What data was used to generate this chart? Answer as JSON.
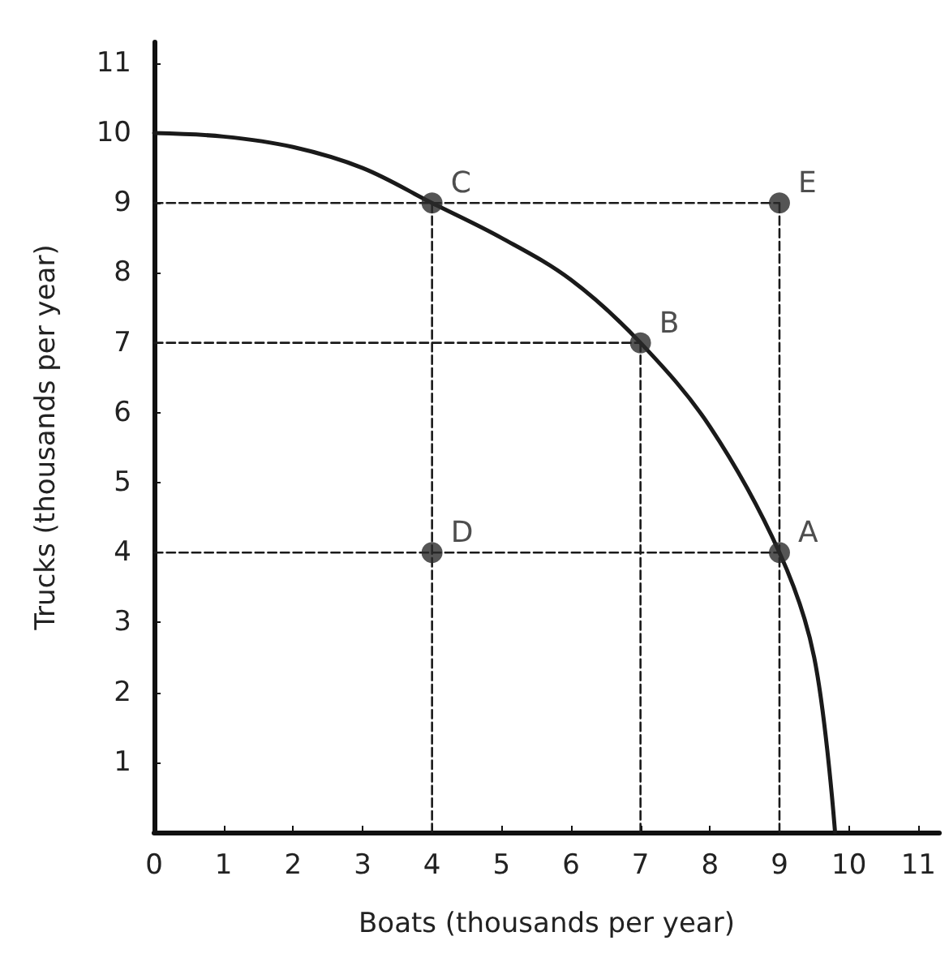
{
  "chart_data": {
    "type": "line",
    "xlabel": "Boats (thousands per year)",
    "ylabel": "Trucks (thousands per year)",
    "xlim": [
      0,
      11.3
    ],
    "ylim": [
      0,
      11.3
    ],
    "xticks": [
      0,
      1,
      2,
      3,
      4,
      5,
      6,
      7,
      8,
      9,
      10,
      11
    ],
    "yticks": [
      {
        "value": 0,
        "label": null
      },
      1,
      2,
      3,
      4,
      5,
      6,
      7,
      8,
      9,
      10,
      11
    ],
    "series": [
      {
        "color": "#1a1a1a",
        "line_style": "solid",
        "marker": "none",
        "x": [
          0,
          1,
          2,
          3,
          4,
          5,
          6,
          7,
          8,
          9,
          9.5,
          9.8
        ],
        "values": [
          10,
          9.95,
          9.8,
          9.5,
          9,
          8.5,
          7.9,
          7,
          5.8,
          4,
          2.5,
          0
        ]
      },
      {
        "color": "#1a1a1a",
        "line_style": "dashed",
        "marker": "none",
        "x": [
          0,
          9
        ],
        "values": [
          9,
          9
        ]
      },
      {
        "color": "#1a1a1a",
        "line_style": "dashed",
        "marker": "none",
        "x": [
          0,
          7
        ],
        "values": [
          7,
          7
        ]
      },
      {
        "color": "#1a1a1a",
        "line_style": "dashed",
        "marker": "none",
        "x": [
          0,
          9
        ],
        "values": [
          4,
          4
        ]
      },
      {
        "color": "#1a1a1a",
        "line_style": "dashed",
        "marker": "none",
        "x": [
          4,
          4
        ],
        "values": [
          0,
          9
        ]
      },
      {
        "color": "#1a1a1a",
        "line_style": "dashed",
        "marker": "none",
        "x": [
          7,
          7
        ],
        "values": [
          0,
          7
        ]
      },
      {
        "color": "#1a1a1a",
        "line_style": "dashed",
        "marker": "none",
        "x": [
          9,
          9
        ],
        "values": [
          0,
          9
        ]
      },
      {
        "type": "scatter",
        "color": "#2b2b2b",
        "marker": "circle",
        "x": [
          9,
          7,
          4,
          4,
          9
        ],
        "values": [
          4,
          7,
          9,
          4,
          9
        ],
        "value_labels": [
          "A",
          "B",
          "C",
          "D",
          "E"
        ]
      }
    ]
  }
}
